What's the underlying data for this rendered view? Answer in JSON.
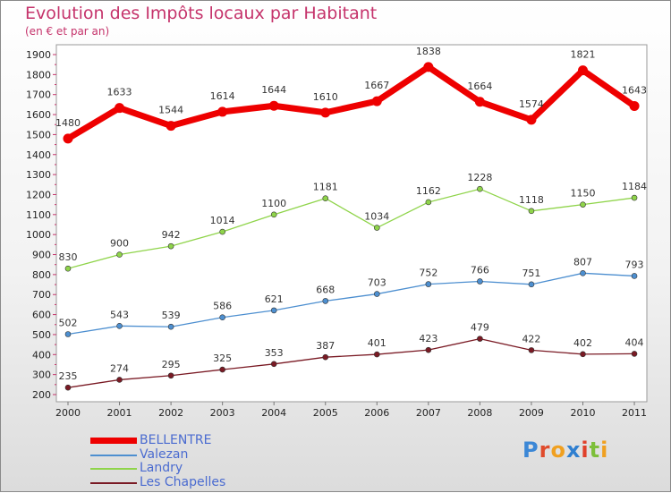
{
  "title": "Evolution des Impôts locaux par Habitant",
  "subtitle": "(en € et par an)",
  "logo": "Proxiti",
  "chart_data": {
    "type": "line",
    "x": [
      "2000",
      "2001",
      "2002",
      "2003",
      "2004",
      "2005",
      "2006",
      "2007",
      "2008",
      "2009",
      "2010",
      "2011"
    ],
    "ylim": [
      200,
      1900
    ],
    "yticks": [
      200,
      300,
      400,
      500,
      600,
      700,
      800,
      900,
      1000,
      1100,
      1200,
      1300,
      1400,
      1500,
      1600,
      1700,
      1800,
      1900
    ],
    "grid": "none",
    "legend_position": "bottom-left",
    "series": [
      {
        "name": "BELLENTRE",
        "color": "#ee0000",
        "values": [
          1480,
          1633,
          1544,
          1614,
          1644,
          1610,
          1667,
          1838,
          1664,
          1574,
          1821,
          1643
        ]
      },
      {
        "name": "Valezan",
        "color": "#4d8fd0",
        "values": [
          502,
          543,
          539,
          586,
          621,
          668,
          703,
          752,
          766,
          751,
          807,
          793
        ]
      },
      {
        "name": "Landry",
        "color": "#8fd44a",
        "values": [
          830,
          900,
          942,
          1014,
          1100,
          1181,
          1034,
          1162,
          1228,
          1118,
          1150,
          1184
        ]
      },
      {
        "name": "Les Chapelles",
        "color": "#7a1a24",
        "values": [
          235,
          274,
          295,
          325,
          353,
          387,
          401,
          423,
          479,
          422,
          402,
          404
        ]
      }
    ]
  }
}
